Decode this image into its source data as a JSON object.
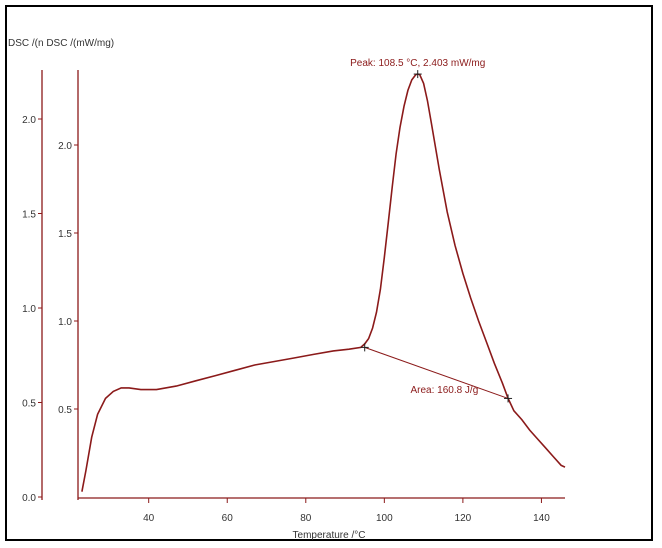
{
  "chart_data": {
    "type": "line",
    "title": "",
    "ylabel": "DSC /(n DSC /(mW/mg)",
    "xlabel": "Temperature /°C",
    "xlim": [
      22,
      146
    ],
    "y_outer": {
      "ticks": [
        0.0,
        0.5,
        1.0,
        1.5,
        2.0
      ],
      "tick_labels": [
        "0.0",
        "0.5",
        "1.0",
        "1.5",
        "2.0"
      ],
      "range": [
        0.0,
        2.4
      ]
    },
    "y_inner": {
      "ticks": [
        0.5,
        1.0,
        1.5,
        2.0
      ],
      "tick_labels": [
        "0.5",
        "1.0",
        "1.5",
        "2.0"
      ],
      "range": [
        0.0,
        2.4
      ]
    },
    "x_ticks": [
      40,
      60,
      80,
      100,
      120,
      140
    ],
    "x_tick_labels": [
      "40",
      "60",
      "80",
      "100",
      "120",
      "140"
    ],
    "series": [
      {
        "color": "#8b1a1a",
        "x": [
          23.0,
          24.0,
          25.5,
          27.0,
          29.0,
          31.0,
          33.0,
          35.0,
          38.0,
          42.0,
          47.0,
          52.0,
          57.0,
          62.0,
          67.0,
          72.0,
          77.0,
          82.0,
          87.0,
          91.0,
          94.0,
          95.0,
          96.0,
          97.0,
          98.0,
          99.0,
          100.0,
          101.0,
          102.0,
          103.0,
          104.0,
          105.0,
          106.0,
          107.0,
          108.0,
          108.5,
          109.0,
          110.0,
          111.0,
          112.0,
          114.0,
          116.0,
          118.0,
          120.0,
          122.0,
          124.0,
          126.0,
          128.0,
          130.0,
          131.5,
          133.0,
          135.0,
          137.0,
          139.0,
          141.0,
          143.0,
          145.0,
          146.0
        ],
        "y": [
          0.03,
          0.15,
          0.34,
          0.47,
          0.56,
          0.6,
          0.62,
          0.62,
          0.61,
          0.61,
          0.63,
          0.66,
          0.69,
          0.72,
          0.75,
          0.77,
          0.79,
          0.81,
          0.83,
          0.84,
          0.85,
          0.87,
          0.9,
          0.96,
          1.05,
          1.18,
          1.36,
          1.56,
          1.76,
          1.95,
          2.1,
          2.22,
          2.31,
          2.37,
          2.4,
          2.403,
          2.4,
          2.35,
          2.25,
          2.12,
          1.86,
          1.62,
          1.43,
          1.27,
          1.13,
          1.0,
          0.88,
          0.76,
          0.65,
          0.56,
          0.49,
          0.44,
          0.38,
          0.33,
          0.28,
          0.23,
          0.18,
          0.17
        ]
      }
    ],
    "annotations": {
      "peak_label": "Peak: 108.5 °C, 2.403 mW/mg",
      "peak_x": 108.5,
      "peak_y": 2.403,
      "area_label": "Area: 160.8 J/g",
      "baseline_start": {
        "x": 95.0,
        "y": 0.85
      },
      "baseline_end": {
        "x": 131.5,
        "y": 0.56
      }
    },
    "grid": false,
    "legend": "none"
  },
  "colors": {
    "curve": "#8b1a1a",
    "axis": "#8b1a1a",
    "text": "#333333"
  }
}
